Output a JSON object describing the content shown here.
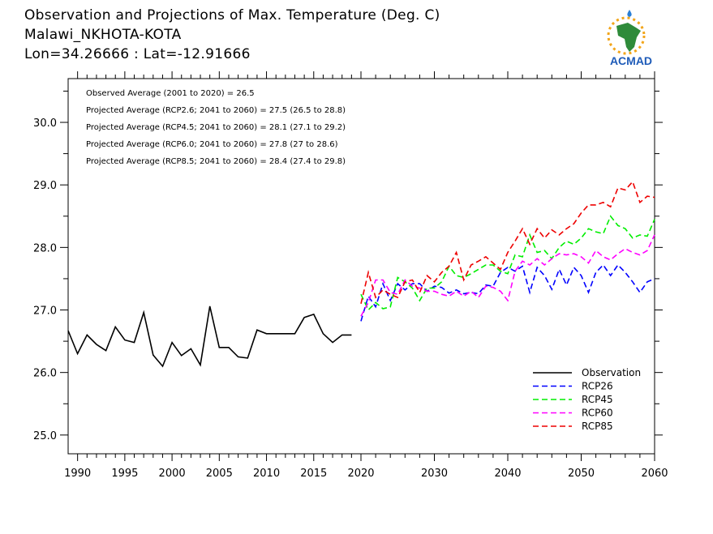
{
  "header": {
    "line1": "Observation and Projections of Max. Temperature (Deg. C)",
    "line2": "Malawi_NKHOTA-KOTA",
    "line3": "Lon=34.26666 : Lat=-12.91666"
  },
  "logo": {
    "text": "ACMAD",
    "icon": "africa-sun-logo"
  },
  "annotations": [
    "Observed Average (2001 to 2020) = 26.5",
    "Projected Average (RCP2.6; 2041 to 2060) = 27.5 (26.5 to 28.8)",
    "Projected Average (RCP4.5; 2041 to 2060) = 28.1 (27.1 to 29.2)",
    "Projected Average (RCP6.0; 2041 to 2060) = 27.8 (27 to 28.6)",
    "Projected Average (RCP8.5; 2041 to 2060) = 28.4 (27.4 to 29.8)"
  ],
  "colors": {
    "observation": "#000000",
    "rcp26": "#0000ff",
    "rcp45": "#00ee00",
    "rcp60": "#ff00ff",
    "rcp85": "#ee0000"
  },
  "chart_data": {
    "type": "line",
    "title": "Observation and Projections of Max. Temperature (Deg. C)",
    "xlim": [
      1989,
      2060
    ],
    "ylim": [
      24.7,
      30.7
    ],
    "x_ticks_left": [
      1990,
      1995,
      2000,
      2005,
      2010,
      2015,
      2020
    ],
    "x_ticks_right": [
      2030,
      2040,
      2050,
      2060
    ],
    "y_ticks": [
      "25.0",
      "26.0",
      "27.0",
      "28.0",
      "29.0",
      "30.0"
    ],
    "legend_position": "bottom-right",
    "series": [
      {
        "name": "Observation",
        "key": "observation",
        "style": "solid",
        "x": [
          1989,
          1990,
          1991,
          1992,
          1993,
          1994,
          1995,
          1996,
          1997,
          1998,
          1999,
          2000,
          2001,
          2002,
          2003,
          2004,
          2005,
          2006,
          2007,
          2008,
          2009,
          2010,
          2011,
          2012,
          2013,
          2014,
          2015,
          2016,
          2017,
          2018,
          2019
        ],
        "y": [
          26.67,
          26.3,
          26.6,
          26.45,
          26.35,
          26.73,
          26.52,
          26.48,
          26.96,
          26.28,
          26.1,
          26.48,
          26.27,
          26.38,
          26.12,
          27.06,
          26.4,
          26.4,
          26.25,
          26.23,
          26.68,
          26.62,
          26.62,
          26.62,
          26.62,
          26.88,
          26.93,
          26.62,
          26.48,
          26.6,
          26.6
        ]
      },
      {
        "name": "RCP26",
        "key": "rcp26",
        "style": "dashed",
        "x": [
          2020,
          2021,
          2022,
          2023,
          2024,
          2025,
          2026,
          2027,
          2028,
          2029,
          2030,
          2031,
          2032,
          2033,
          2034,
          2035,
          2036,
          2037,
          2038,
          2039,
          2040,
          2041,
          2042,
          2043,
          2044,
          2045,
          2046,
          2047,
          2048,
          2049,
          2050,
          2051,
          2052,
          2053,
          2054,
          2055,
          2056,
          2057,
          2058,
          2059,
          2060
        ],
        "y": [
          26.82,
          27.22,
          27.05,
          27.42,
          27.15,
          27.42,
          27.32,
          27.42,
          27.42,
          27.3,
          27.38,
          27.36,
          27.27,
          27.32,
          27.26,
          27.28,
          27.26,
          27.4,
          27.38,
          27.6,
          27.68,
          27.62,
          27.7,
          27.28,
          27.68,
          27.55,
          27.33,
          27.65,
          27.4,
          27.68,
          27.55,
          27.28,
          27.6,
          27.72,
          27.55,
          27.72,
          27.6,
          27.45,
          27.28,
          27.45,
          27.5
        ]
      },
      {
        "name": "RCP45",
        "key": "rcp45",
        "style": "dashed",
        "x": [
          2020,
          2021,
          2022,
          2023,
          2024,
          2025,
          2026,
          2027,
          2028,
          2029,
          2030,
          2031,
          2032,
          2033,
          2034,
          2035,
          2036,
          2037,
          2038,
          2039,
          2040,
          2041,
          2042,
          2043,
          2044,
          2045,
          2046,
          2047,
          2048,
          2049,
          2050,
          2051,
          2052,
          2053,
          2054,
          2055,
          2056,
          2057,
          2058,
          2059,
          2060
        ],
        "y": [
          27.25,
          27.0,
          27.12,
          27.02,
          27.05,
          27.52,
          27.45,
          27.35,
          27.15,
          27.35,
          27.35,
          27.45,
          27.7,
          27.55,
          27.52,
          27.58,
          27.65,
          27.72,
          27.72,
          27.62,
          27.58,
          27.88,
          27.85,
          28.2,
          27.92,
          27.95,
          27.82,
          28.0,
          28.1,
          28.05,
          28.15,
          28.3,
          28.25,
          28.22,
          28.5,
          28.35,
          28.3,
          28.15,
          28.2,
          28.18,
          28.45
        ]
      },
      {
        "name": "RCP60",
        "key": "rcp60",
        "style": "dashed",
        "x": [
          2020,
          2021,
          2022,
          2023,
          2024,
          2025,
          2026,
          2027,
          2028,
          2029,
          2030,
          2031,
          2032,
          2033,
          2034,
          2035,
          2036,
          2037,
          2038,
          2039,
          2040,
          2041,
          2042,
          2043,
          2044,
          2045,
          2046,
          2047,
          2048,
          2049,
          2050,
          2051,
          2052,
          2053,
          2054,
          2055,
          2056,
          2057,
          2058,
          2059,
          2060
        ],
        "y": [
          26.9,
          27.12,
          27.48,
          27.48,
          27.28,
          27.25,
          27.48,
          27.38,
          27.35,
          27.3,
          27.3,
          27.25,
          27.22,
          27.3,
          27.22,
          27.3,
          27.2,
          27.38,
          27.36,
          27.3,
          27.15,
          27.62,
          27.78,
          27.72,
          27.82,
          27.72,
          27.82,
          27.9,
          27.88,
          27.9,
          27.85,
          27.75,
          27.95,
          27.85,
          27.8,
          27.9,
          27.98,
          27.92,
          27.88,
          27.95,
          28.2
        ]
      },
      {
        "name": "RCP85",
        "key": "rcp85",
        "style": "dashed",
        "x": [
          2020,
          2021,
          2022,
          2023,
          2024,
          2025,
          2026,
          2027,
          2028,
          2029,
          2030,
          2031,
          2032,
          2033,
          2034,
          2035,
          2036,
          2037,
          2038,
          2039,
          2040,
          2041,
          2042,
          2043,
          2044,
          2045,
          2046,
          2047,
          2048,
          2049,
          2050,
          2051,
          2052,
          2053,
          2054,
          2055,
          2056,
          2057,
          2058,
          2059,
          2060
        ],
        "y": [
          27.1,
          27.6,
          27.2,
          27.32,
          27.25,
          27.2,
          27.45,
          27.48,
          27.28,
          27.55,
          27.45,
          27.6,
          27.7,
          27.92,
          27.48,
          27.72,
          27.78,
          27.85,
          27.75,
          27.65,
          27.92,
          28.1,
          28.3,
          28.05,
          28.3,
          28.15,
          28.28,
          28.2,
          28.3,
          28.38,
          28.55,
          28.68,
          28.68,
          28.72,
          28.65,
          28.95,
          28.92,
          29.05,
          28.72,
          28.82,
          28.8
        ]
      }
    ]
  }
}
